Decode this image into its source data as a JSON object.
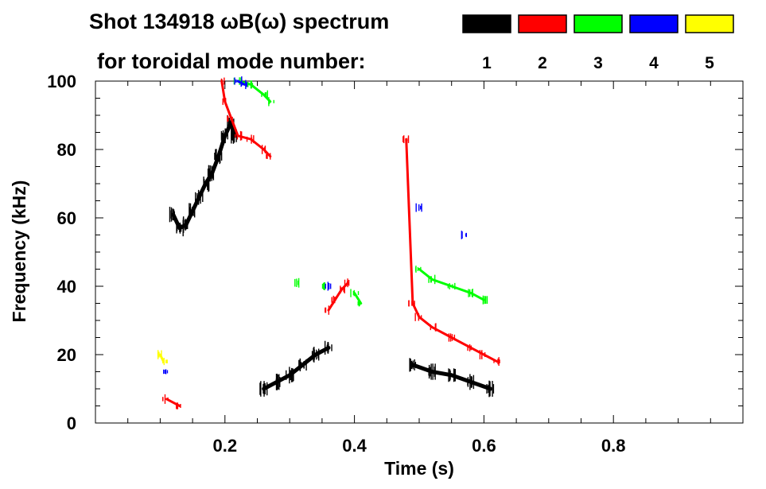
{
  "chart_data": {
    "type": "spectrogram",
    "title_line1": "Shot 134918 ωB(ω) spectrum",
    "title_line2": "for toroidal mode number:",
    "xlabel": "Time (s)",
    "ylabel": "Frequency (kHz)",
    "xlim": [
      0.0,
      1.0
    ],
    "ylim": [
      0,
      100
    ],
    "xticks": [
      {
        "value": 0.2,
        "label": "0.2"
      },
      {
        "value": 0.4,
        "label": "0.4"
      },
      {
        "value": 0.6,
        "label": "0.6"
      },
      {
        "value": 0.8,
        "label": "0.8"
      }
    ],
    "yticks": [
      {
        "value": 0,
        "label": "0"
      },
      {
        "value": 20,
        "label": "20"
      },
      {
        "value": 40,
        "label": "40"
      },
      {
        "value": 60,
        "label": "60"
      },
      {
        "value": 80,
        "label": "80"
      },
      {
        "value": 100,
        "label": "100"
      }
    ],
    "legend": [
      {
        "mode": "1",
        "color": "#000000"
      },
      {
        "mode": "2",
        "color": "#ff0000"
      },
      {
        "mode": "3",
        "color": "#00ff00"
      },
      {
        "mode": "4",
        "color": "#0000ff"
      },
      {
        "mode": "5",
        "color": "#ffff00"
      }
    ],
    "series": [
      {
        "mode": "1",
        "color": "#000000",
        "points": [
          [
            0.12,
            61
          ],
          [
            0.13,
            57
          ],
          [
            0.14,
            58
          ],
          [
            0.15,
            62
          ],
          [
            0.16,
            66
          ],
          [
            0.17,
            70
          ],
          [
            0.18,
            73
          ],
          [
            0.19,
            78
          ],
          [
            0.2,
            84
          ],
          [
            0.21,
            88
          ],
          [
            0.215,
            84
          ],
          [
            0.26,
            10
          ],
          [
            0.28,
            12
          ],
          [
            0.3,
            14
          ],
          [
            0.32,
            17
          ],
          [
            0.34,
            20
          ],
          [
            0.36,
            22
          ],
          [
            0.49,
            17
          ],
          [
            0.52,
            15
          ],
          [
            0.55,
            14
          ],
          [
            0.58,
            12
          ],
          [
            0.61,
            10
          ]
        ]
      },
      {
        "mode": "2",
        "color": "#ff0000",
        "points": [
          [
            0.195,
            100
          ],
          [
            0.2,
            94
          ],
          [
            0.21,
            89
          ],
          [
            0.22,
            84
          ],
          [
            0.24,
            83
          ],
          [
            0.26,
            80
          ],
          [
            0.27,
            78
          ],
          [
            0.36,
            33
          ],
          [
            0.37,
            36
          ],
          [
            0.38,
            39
          ],
          [
            0.39,
            41
          ],
          [
            0.48,
            83
          ],
          [
            0.49,
            35
          ],
          [
            0.5,
            31
          ],
          [
            0.52,
            28
          ],
          [
            0.55,
            25
          ],
          [
            0.58,
            22
          ],
          [
            0.6,
            20
          ],
          [
            0.62,
            18
          ],
          [
            0.11,
            7
          ],
          [
            0.13,
            5
          ]
        ]
      },
      {
        "mode": "3",
        "color": "#00ff00",
        "points": [
          [
            0.22,
            100
          ],
          [
            0.24,
            99
          ],
          [
            0.26,
            96
          ],
          [
            0.27,
            94
          ],
          [
            0.31,
            41
          ],
          [
            0.35,
            40
          ],
          [
            0.4,
            38
          ],
          [
            0.41,
            35
          ],
          [
            0.5,
            45
          ],
          [
            0.52,
            42
          ],
          [
            0.55,
            40
          ],
          [
            0.58,
            38
          ],
          [
            0.6,
            36
          ]
        ]
      },
      {
        "mode": "4",
        "color": "#0000ff",
        "points": [
          [
            0.22,
            100
          ],
          [
            0.23,
            99
          ],
          [
            0.5,
            63
          ],
          [
            0.57,
            55
          ],
          [
            0.36,
            40
          ],
          [
            0.11,
            15
          ]
        ]
      },
      {
        "mode": "5",
        "color": "#ffff00",
        "points": [
          [
            0.1,
            20
          ],
          [
            0.105,
            18
          ]
        ]
      }
    ]
  }
}
